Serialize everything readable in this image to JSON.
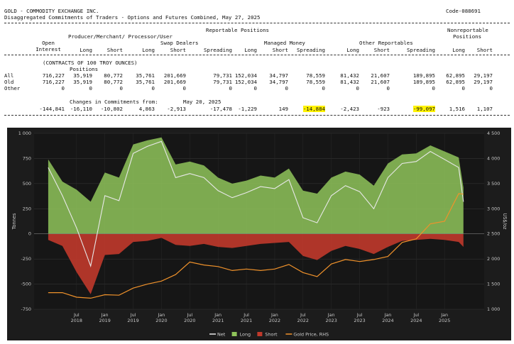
{
  "report": {
    "title": "GOLD - COMMODITY EXCHANGE INC.",
    "subtitle": "Disaggregated Commitments of Traders - Options and Futures Combined, May 27, 2025",
    "code": "Code-088691",
    "reportable_positions": "Reportable Positions",
    "nonreportable": "Nonreportable",
    "positions_word": "Positions",
    "open_interest": "Open Interest",
    "producer": "Producer/Merchant/ Processor/User",
    "swap": "Swap Dealers",
    "managed": "Managed Money",
    "other": "Other Reportables",
    "long": "Long",
    "short": "Short",
    "spreading": "Spreading",
    "contracts": "(CONTRACTS OF 100 TROY OUNCES)",
    "rows": [
      {
        "label": "All",
        "values": [
          "716,227",
          "35,919",
          "80,772",
          "35,761",
          "201,669",
          "79,731",
          "152,034",
          "34,797",
          "78,559",
          "81,432",
          "21,607",
          "189,895",
          "62,895",
          "29,197"
        ]
      },
      {
        "label": "Old",
        "values": [
          "716,227",
          "35,919",
          "80,772",
          "35,761",
          "201,669",
          "79,731",
          "152,034",
          "34,797",
          "78,559",
          "81,432",
          "21,607",
          "189,895",
          "62,895",
          "29,197"
        ]
      },
      {
        "label": "Other",
        "values": [
          "0",
          "0",
          "0",
          "0",
          "0",
          "0",
          "0",
          "0",
          "0",
          "0",
          "0",
          "0",
          "0",
          "0"
        ]
      }
    ],
    "changes_label": "Changes in Commitments from:",
    "changes_date": "May 20, 2025",
    "changes": [
      "-144,841",
      "-16,110",
      "-10,802",
      "4,863",
      "-2,913",
      "-17,478",
      "-1,229",
      "149",
      "-14,884",
      "-2,423",
      "-923",
      "-99,097",
      "1,516",
      "1,107"
    ],
    "highlighted": [
      "-14,884",
      "-99,097"
    ]
  },
  "chart_data": {
    "type": "area",
    "ylabel": "Tonnes",
    "y2label": "US$/oz",
    "ylim": [
      -750,
      1000
    ],
    "y2lim": [
      1000,
      4500
    ],
    "yticks": [
      "1 000",
      "750",
      "500",
      "250",
      "0",
      "-250",
      "-500",
      "-750"
    ],
    "y2ticks": [
      "4 500",
      "4 000",
      "3 500",
      "3 000",
      "2 500",
      "2 000",
      "1 500",
      "1 000"
    ],
    "x_ticks": [
      {
        "label": "Jul",
        "year": "2018"
      },
      {
        "label": "Jan",
        "year": "2019"
      },
      {
        "label": "Jul",
        "year": "2019"
      },
      {
        "label": "Jan",
        "year": "2020"
      },
      {
        "label": "Jul",
        "year": "2020"
      },
      {
        "label": "Jan",
        "year": "2021"
      },
      {
        "label": "Jul",
        "year": "2021"
      },
      {
        "label": "Jan",
        "year": "2022"
      },
      {
        "label": "Jul",
        "year": "2022"
      },
      {
        "label": "Jan",
        "year": "2023"
      },
      {
        "label": "Jul",
        "year": "2023"
      },
      {
        "label": "Jan",
        "year": "2024"
      },
      {
        "label": "Jul",
        "year": "2024"
      },
      {
        "label": "Jan",
        "year": "2025"
      }
    ],
    "x": [
      "2018-01",
      "2018-04",
      "2018-07",
      "2018-10",
      "2019-01",
      "2019-04",
      "2019-07",
      "2019-10",
      "2020-01",
      "2020-04",
      "2020-07",
      "2020-10",
      "2021-01",
      "2021-04",
      "2021-07",
      "2021-10",
      "2022-01",
      "2022-04",
      "2022-07",
      "2022-10",
      "2023-01",
      "2023-04",
      "2023-07",
      "2023-10",
      "2024-01",
      "2024-04",
      "2024-07",
      "2024-10",
      "2025-01",
      "2025-04",
      "2025-05"
    ],
    "series": [
      {
        "name": "Net",
        "color": "#e8e8e8",
        "values": [
          660,
          380,
          60,
          -320,
          380,
          330,
          800,
          870,
          920,
          560,
          600,
          560,
          430,
          360,
          410,
          470,
          450,
          540,
          160,
          110,
          380,
          480,
          420,
          250,
          560,
          700,
          720,
          820,
          740,
          660,
          320
        ]
      },
      {
        "name": "Long",
        "color": "#8fc45a",
        "values": [
          740,
          520,
          440,
          320,
          610,
          560,
          890,
          930,
          960,
          690,
          720,
          680,
          560,
          500,
          530,
          580,
          560,
          650,
          430,
          400,
          560,
          620,
          590,
          480,
          700,
          790,
          800,
          880,
          820,
          760,
          460
        ]
      },
      {
        "name": "Short",
        "color": "#c0392b",
        "values": [
          -60,
          -120,
          -380,
          -600,
          -210,
          -200,
          -80,
          -70,
          -40,
          -110,
          -120,
          -100,
          -130,
          -140,
          -120,
          -100,
          -90,
          -80,
          -220,
          -260,
          -170,
          -120,
          -150,
          -200,
          -130,
          -70,
          -60,
          -50,
          -60,
          -80,
          -130
        ]
      },
      {
        "name": "Gold Price, RHS",
        "color": "#f0922b",
        "values": [
          1330,
          1330,
          1240,
          1220,
          1290,
          1280,
          1420,
          1500,
          1560,
          1690,
          1940,
          1880,
          1850,
          1770,
          1800,
          1770,
          1800,
          1890,
          1730,
          1650,
          1900,
          1990,
          1950,
          1990,
          2050,
          2330,
          2400,
          2700,
          2750,
          3300,
          3290
        ]
      }
    ],
    "legend": "bottom-center",
    "grid": true
  }
}
